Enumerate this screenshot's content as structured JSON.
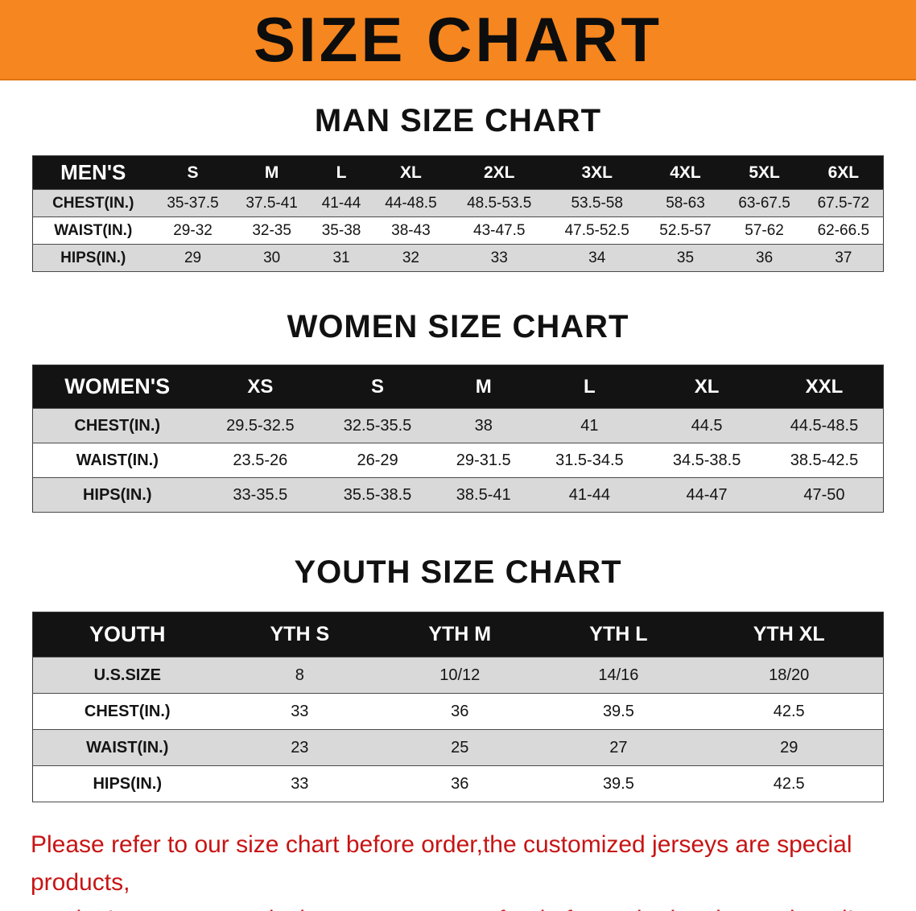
{
  "banner": {
    "title": "SIZE CHART"
  },
  "men": {
    "heading": "MAN SIZE CHART",
    "header": [
      "MEN'S",
      "S",
      "M",
      "L",
      "XL",
      "2XL",
      "3XL",
      "4XL",
      "5XL",
      "6XL"
    ],
    "rows": [
      {
        "label": "CHEST(IN.)",
        "values": [
          "35-37.5",
          "37.5-41",
          "41-44",
          "44-48.5",
          "48.5-53.5",
          "53.5-58",
          "58-63",
          "63-67.5",
          "67.5-72"
        ]
      },
      {
        "label": "WAIST(IN.)",
        "values": [
          "29-32",
          "32-35",
          "35-38",
          "38-43",
          "43-47.5",
          "47.5-52.5",
          "52.5-57",
          "57-62",
          "62-66.5"
        ]
      },
      {
        "label": "HIPS(IN.)",
        "values": [
          "29",
          "30",
          "31",
          "32",
          "33",
          "34",
          "35",
          "36",
          "37"
        ]
      }
    ]
  },
  "women": {
    "heading": "WOMEN SIZE CHART",
    "header": [
      "WOMEN'S",
      "XS",
      "S",
      "M",
      "L",
      "XL",
      "XXL"
    ],
    "rows": [
      {
        "label": "CHEST(IN.)",
        "values": [
          "29.5-32.5",
          "32.5-35.5",
          "38",
          "41",
          "44.5",
          "44.5-48.5"
        ]
      },
      {
        "label": "WAIST(IN.)",
        "values": [
          "23.5-26",
          "26-29",
          "29-31.5",
          "31.5-34.5",
          "34.5-38.5",
          "38.5-42.5"
        ]
      },
      {
        "label": "HIPS(IN.)",
        "values": [
          "33-35.5",
          "35.5-38.5",
          "38.5-41",
          "41-44",
          "44-47",
          "47-50"
        ]
      }
    ]
  },
  "youth": {
    "heading": "YOUTH SIZE CHART",
    "header": [
      "YOUTH",
      "YTH S",
      "YTH M",
      "YTH L",
      "YTH XL"
    ],
    "rows": [
      {
        "label": "U.S.SIZE",
        "values": [
          "8",
          "10/12",
          "14/16",
          "18/20"
        ]
      },
      {
        "label": "CHEST(IN.)",
        "values": [
          "33",
          "36",
          "39.5",
          "42.5"
        ]
      },
      {
        "label": "WAIST(IN.)",
        "values": [
          "23",
          "25",
          "27",
          "29"
        ]
      },
      {
        "label": "HIPS(IN.)",
        "values": [
          "33",
          "36",
          "39.5",
          "42.5"
        ]
      }
    ]
  },
  "disclaimer": {
    "line1": "Please refer to our size chart before order,the customized jerseys are special products,",
    "line2": "we don't accept cancel, change, teturn or refund after order has been placed!"
  }
}
